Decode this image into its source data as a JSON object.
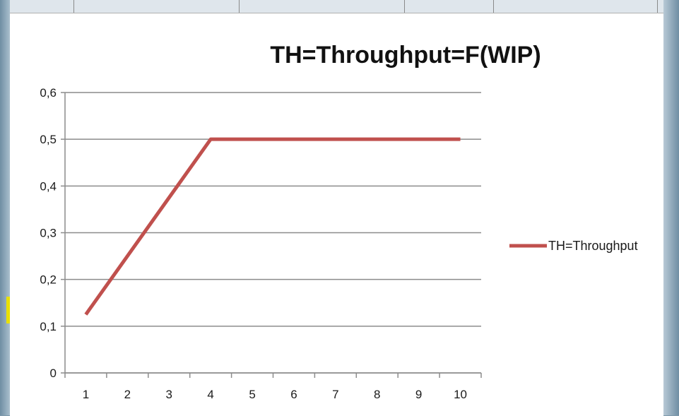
{
  "chart_data": {
    "type": "line",
    "title": "TH=Throughput=F(WIP)",
    "xlabel": "",
    "ylabel": "",
    "categories": [
      "1",
      "2",
      "3",
      "4",
      "5",
      "6",
      "7",
      "8",
      "9",
      "10"
    ],
    "series": [
      {
        "name": "TH=Throughput",
        "values": [
          0.125,
          0.25,
          0.375,
          0.5,
          0.5,
          0.5,
          0.5,
          0.5,
          0.5,
          0.5
        ],
        "color": "#c0504d"
      }
    ],
    "y_ticks": [
      "0",
      "0,1",
      "0,2",
      "0,3",
      "0,4",
      "0,5",
      "0,6"
    ],
    "ylim": [
      0,
      0.6
    ],
    "grid": true,
    "legend_position": "right"
  }
}
